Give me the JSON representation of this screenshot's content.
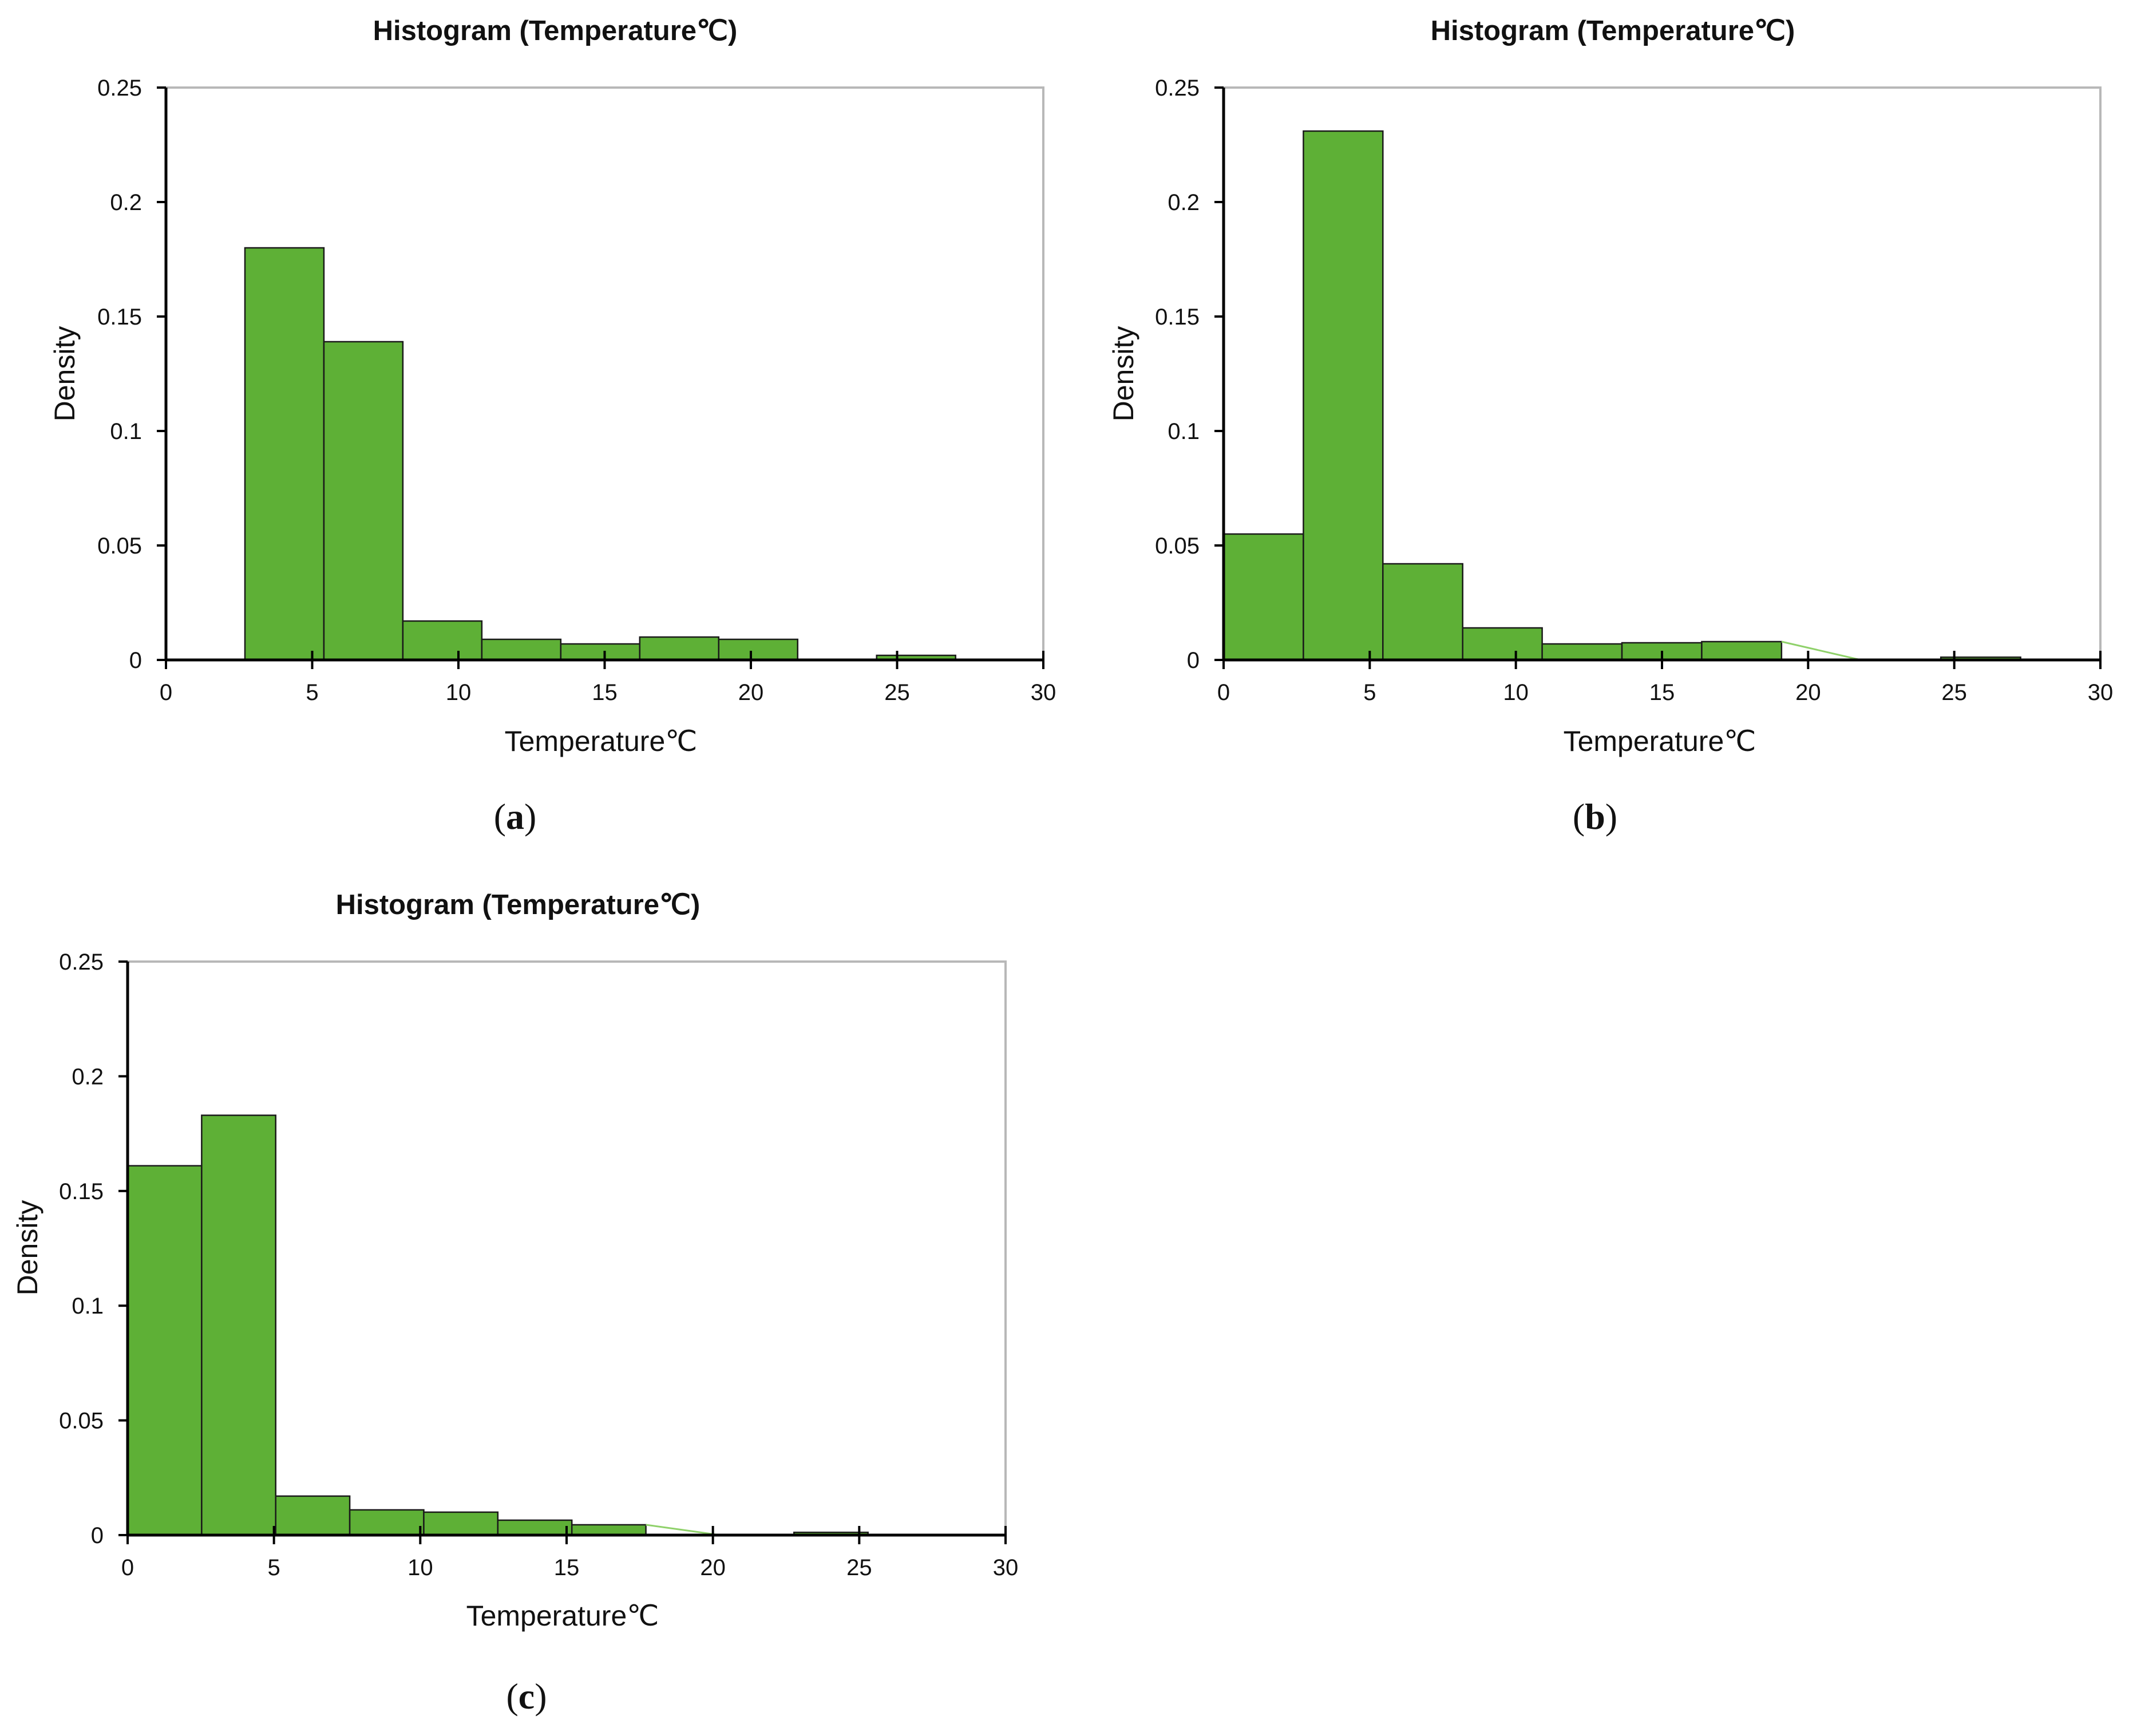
{
  "figure": {
    "panels": [
      {
        "id": "a",
        "label_open": "(",
        "label_letter": "a",
        "label_close": ")"
      },
      {
        "id": "b",
        "label_open": "(",
        "label_letter": "b",
        "label_close": ")"
      },
      {
        "id": "c",
        "label_open": "(",
        "label_letter": "c",
        "label_close": ")"
      }
    ]
  },
  "colors": {
    "bar_fill": "#5eb036",
    "bar_stroke": "#1a1a1a",
    "tail_line": "#8fd16a",
    "frame": "#b8b8b8",
    "axis": "#000000"
  },
  "chart_data": [
    {
      "type": "bar",
      "title": "Histogram  (Temperature℃)",
      "xlabel": "Temperature℃",
      "ylabel": "Density",
      "xlim": [
        0,
        30
      ],
      "ylim": [
        0,
        0.25
      ],
      "xticks": [
        "0",
        "5",
        "10",
        "15",
        "20",
        "25",
        "30"
      ],
      "yticks": [
        "0",
        "0.05",
        "0.1",
        "0.15",
        "0.2",
        "0.25"
      ],
      "bins": [
        {
          "x0": 2.7,
          "x1": 5.4,
          "density": 0.18
        },
        {
          "x0": 5.4,
          "x1": 8.1,
          "density": 0.139
        },
        {
          "x0": 8.1,
          "x1": 10.8,
          "density": 0.017
        },
        {
          "x0": 10.8,
          "x1": 13.5,
          "density": 0.009
        },
        {
          "x0": 13.5,
          "x1": 16.2,
          "density": 0.007
        },
        {
          "x0": 16.2,
          "x1": 18.9,
          "density": 0.01
        },
        {
          "x0": 18.9,
          "x1": 21.6,
          "density": 0.009
        },
        {
          "x0": 21.6,
          "x1": 24.3,
          "density": 0.0
        },
        {
          "x0": 24.3,
          "x1": 27.0,
          "density": 0.002
        }
      ],
      "tail": null
    },
    {
      "type": "bar",
      "title": "Histogram  (Temperature℃)",
      "xlabel": "Temperature℃",
      "ylabel": "Density",
      "xlim": [
        0,
        30
      ],
      "ylim": [
        0,
        0.25
      ],
      "xticks": [
        "0",
        "5",
        "10",
        "15",
        "20",
        "25",
        "30"
      ],
      "yticks": [
        "0",
        "0.05",
        "0.1",
        "0.15",
        "0.2",
        "0.25"
      ],
      "bins": [
        {
          "x0": 0.0,
          "x1": 2.73,
          "density": 0.055
        },
        {
          "x0": 2.73,
          "x1": 5.45,
          "density": 0.231
        },
        {
          "x0": 5.45,
          "x1": 8.18,
          "density": 0.042
        },
        {
          "x0": 8.18,
          "x1": 10.9,
          "density": 0.014
        },
        {
          "x0": 10.9,
          "x1": 13.63,
          "density": 0.007
        },
        {
          "x0": 13.63,
          "x1": 16.36,
          "density": 0.0075
        },
        {
          "x0": 16.36,
          "x1": 19.09,
          "density": 0.008
        },
        {
          "x0": 21.8,
          "x1": 24.54,
          "density": 0.0003
        },
        {
          "x0": 24.54,
          "x1": 27.27,
          "density": 0.0012
        }
      ],
      "tail": {
        "x0": 19.09,
        "y0": 0.008,
        "x1": 21.8,
        "y1": 0.0
      }
    },
    {
      "type": "bar",
      "title": "Histogram  (Temperature℃)",
      "xlabel": "Temperature℃",
      "ylabel": "Density",
      "xlim": [
        0,
        30
      ],
      "ylim": [
        0,
        0.25
      ],
      "xticks": [
        "0",
        "5",
        "10",
        "15",
        "20",
        "25",
        "30"
      ],
      "yticks": [
        "0",
        "0.05",
        "0.1",
        "0.15",
        "0.2",
        "0.25"
      ],
      "bins": [
        {
          "x0": 0.0,
          "x1": 2.53,
          "density": 0.161
        },
        {
          "x0": 2.53,
          "x1": 5.06,
          "density": 0.183
        },
        {
          "x0": 5.06,
          "x1": 7.59,
          "density": 0.017
        },
        {
          "x0": 7.59,
          "x1": 10.12,
          "density": 0.011
        },
        {
          "x0": 10.12,
          "x1": 12.65,
          "density": 0.01
        },
        {
          "x0": 12.65,
          "x1": 15.18,
          "density": 0.0065
        },
        {
          "x0": 15.18,
          "x1": 17.71,
          "density": 0.0045
        },
        {
          "x0": 20.24,
          "x1": 22.77,
          "density": 0.0003
        },
        {
          "x0": 22.77,
          "x1": 25.3,
          "density": 0.0012
        }
      ],
      "tail": {
        "x0": 17.71,
        "y0": 0.0045,
        "x1": 20.24,
        "y1": 0.0
      }
    }
  ]
}
